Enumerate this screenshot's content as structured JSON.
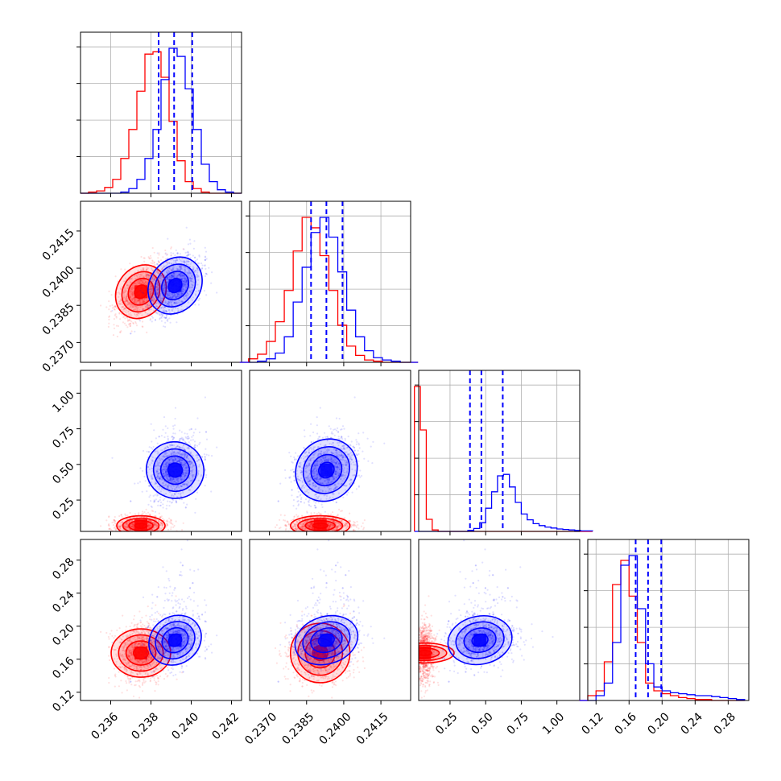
{
  "chart_data": {
    "type": "corner",
    "series": [
      {
        "color": "#ff0000",
        "means": [
          0.2375,
          0.23905,
          0.07,
          0.1675
        ],
        "sds": [
          0.0006,
          0.0006,
          0.035,
          0.018
        ],
        "corr": [
          [
            1,
            0.6,
            0,
            0
          ],
          [
            0.6,
            1,
            0,
            0
          ],
          [
            0,
            0,
            1,
            0
          ],
          [
            0,
            0,
            0,
            1
          ]
        ]
      },
      {
        "color": "#0000ff",
        "means": [
          0.2392,
          0.2393,
          0.46,
          0.183
        ],
        "sds": [
          0.00065,
          0.00062,
          0.11,
          0.015
        ],
        "corr": [
          [
            1,
            0.55,
            0.25,
            0.15
          ],
          [
            0.55,
            1,
            0.2,
            0.15
          ],
          [
            0.25,
            0.2,
            1,
            0.1
          ],
          [
            0.15,
            0.15,
            0.1,
            1
          ]
        ]
      }
    ],
    "quantile_lines": {
      "color": "#0000ff",
      "values": [
        [
          0.23838,
          0.23915,
          0.24005
        ],
        [
          0.23868,
          0.2393,
          0.23995
        ],
        [
          0.39,
          0.47,
          0.62
        ],
        [
          0.168,
          0.183,
          0.199
        ]
      ]
    },
    "hist_values": [
      {
        "red": [
          0,
          1,
          2,
          5,
          12,
          30,
          55,
          88,
          120,
          122,
          100,
          62,
          28,
          10,
          4,
          1,
          0,
          0,
          0,
          0
        ],
        "blue": [
          0,
          0,
          0,
          0,
          0,
          1,
          4,
          12,
          30,
          55,
          98,
          125,
          118,
          90,
          55,
          25,
          10,
          3,
          1,
          0
        ]
      },
      {
        "red": [
          0,
          3,
          7,
          18,
          35,
          62,
          96,
          125,
          116,
          92,
          62,
          32,
          14,
          6,
          2,
          1,
          0,
          0,
          0,
          0
        ],
        "blue": [
          0,
          0,
          1,
          3,
          8,
          22,
          52,
          82,
          112,
          125,
          108,
          78,
          45,
          22,
          10,
          4,
          2,
          1,
          0,
          0
        ]
      },
      {
        "red": [
          300,
          210,
          25,
          3,
          0,
          0,
          0,
          0,
          0,
          0,
          0,
          0,
          0,
          0,
          0,
          0,
          0,
          0,
          0,
          0,
          0,
          0,
          0,
          0,
          0,
          0,
          0,
          0,
          0,
          0
        ],
        "blue": [
          0,
          0,
          0,
          0,
          0,
          0,
          0,
          0,
          0,
          2,
          6,
          18,
          48,
          82,
          115,
          118,
          92,
          60,
          36,
          24,
          16,
          12,
          9,
          7,
          5,
          4,
          3,
          2,
          1,
          1
        ]
      },
      {
        "red": [
          0,
          5,
          10,
          40,
          120,
          145,
          108,
          60,
          18,
          10,
          7,
          5,
          3,
          2,
          1,
          1,
          0,
          0,
          0,
          0
        ],
        "blue": [
          0,
          0,
          5,
          18,
          60,
          140,
          150,
          95,
          38,
          14,
          10,
          8,
          7,
          6,
          5,
          5,
          4,
          3,
          2,
          1
        ]
      }
    ],
    "hist_range": [
      [
        0.2345,
        0.2425
      ],
      [
        0.2358,
        0.243
      ],
      [
        0.0,
        1.25
      ],
      [
        0.1,
        0.3
      ]
    ],
    "axes": {
      "ranges": [
        [
          0.2345,
          0.2425
        ],
        [
          0.2362,
          0.2427
        ],
        [
          0.03,
          1.16
        ],
        [
          0.11,
          0.305
        ]
      ],
      "ticks": [
        [
          0.236,
          0.238,
          0.24,
          0.242
        ],
        [
          0.237,
          0.2385,
          0.24,
          0.2415
        ],
        [
          0.25,
          0.5,
          0.75,
          1.0
        ],
        [
          0.12,
          0.16,
          0.2,
          0.24,
          0.28
        ]
      ],
      "tick_labels": [
        [
          "0.236",
          "0.238",
          "0.240",
          "0.242"
        ],
        [
          "0.2370",
          "0.2385",
          "0.2400",
          "0.2415"
        ],
        [
          "0.25",
          "0.50",
          "0.75",
          "1.00"
        ],
        [
          "0.12",
          "0.16",
          "0.20",
          "0.24",
          "0.28"
        ]
      ],
      "xlabels": [
        "",
        "",
        "",
        ""
      ],
      "ylabels": [
        "",
        "",
        "",
        ""
      ]
    },
    "grid": true,
    "title": ""
  }
}
